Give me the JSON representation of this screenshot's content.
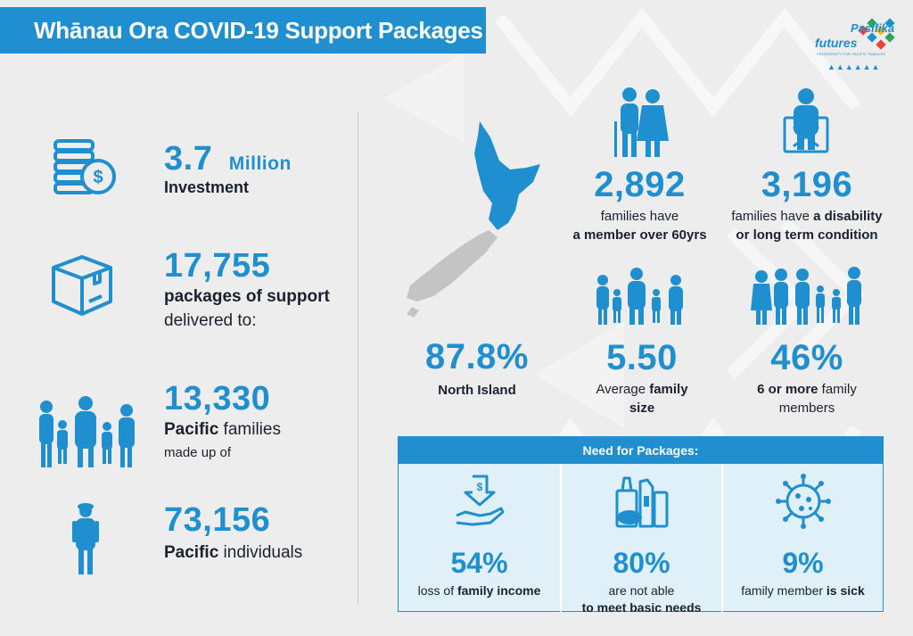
{
  "header": {
    "title": "Whānau Ora COVID-19 Support Packages"
  },
  "logo": {
    "name_line1": "Pasifika",
    "name_line2": "futures",
    "tagline": "PROSPERITY FOR PACIFIC FAMILIES",
    "marks": "▲▲▲▲▲▲"
  },
  "left": {
    "investment": {
      "value": "3.7",
      "unit": "Million",
      "label": "Investment",
      "icon": "coins-dollar-icon"
    },
    "packages": {
      "value": "17,755",
      "label": "packages of support",
      "sublabel": "delivered to:",
      "icon": "box-icon"
    },
    "families": {
      "value": "13,330",
      "label_bold": "Pacific",
      "label_rest": " families",
      "sublabel": "made up of",
      "icon": "family-icon"
    },
    "individuals": {
      "value": "73,156",
      "label_bold": "Pacific",
      "label_rest": " individuals",
      "icon": "person-icon"
    }
  },
  "right": {
    "north_island": {
      "value": "87.8%",
      "label": "North Island",
      "icon": "nz-map-icon"
    },
    "over60": {
      "value": "2,892",
      "line1": "families have",
      "line2": "a member over 60yrs",
      "icon": "elderly-couple-icon"
    },
    "disability": {
      "value": "3,196",
      "line1_plain": "families have ",
      "line1_bold": "a disability",
      "line2": "or long term condition",
      "icon": "wheelchair-icon"
    },
    "family_size": {
      "value": "5.50",
      "line1_plain": "Average ",
      "line1_bold": "family",
      "line2": "size",
      "icon": "family-group-icon"
    },
    "six_plus": {
      "value": "46%",
      "line1_bold": "6 or more",
      "line1_plain": " family",
      "line2": "members",
      "icon": "large-family-icon"
    }
  },
  "need": {
    "title": "Need for Packages:",
    "items": [
      {
        "value": "54%",
        "line1_plain": "loss of ",
        "line1_bold": "family income",
        "line2": "",
        "icon": "hand-dollar-icon"
      },
      {
        "value": "80%",
        "line1_plain": "are not able",
        "line1_bold": "",
        "line2": "to meet basic needs",
        "icon": "groceries-icon"
      },
      {
        "value": "9%",
        "line1_plain": "family member ",
        "line1_bold": "is sick",
        "line2": "",
        "icon": "virus-icon"
      }
    ]
  },
  "colors": {
    "accent": "#1f8fcf",
    "background": "#ededed",
    "need_box": "#dff0f8",
    "map_grey": "#c4c4c4"
  }
}
